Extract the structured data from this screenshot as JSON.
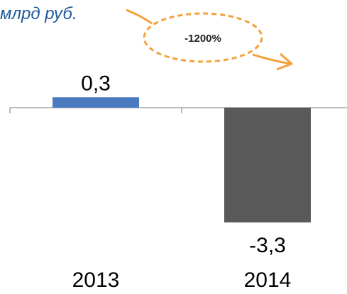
{
  "chart_data": {
    "type": "bar",
    "unit_label": "млрд руб.",
    "categories": [
      "2013",
      "2014"
    ],
    "values": [
      0.3,
      -3.3
    ],
    "value_labels": [
      "0,3",
      "-3,3"
    ],
    "bar_colors": [
      "#4a7ac0",
      "#595959"
    ],
    "annotation": {
      "text": "-1200%",
      "color": "#f3a13a"
    },
    "axis_color": "#a6a6a6",
    "grid": false,
    "legend": "none"
  }
}
